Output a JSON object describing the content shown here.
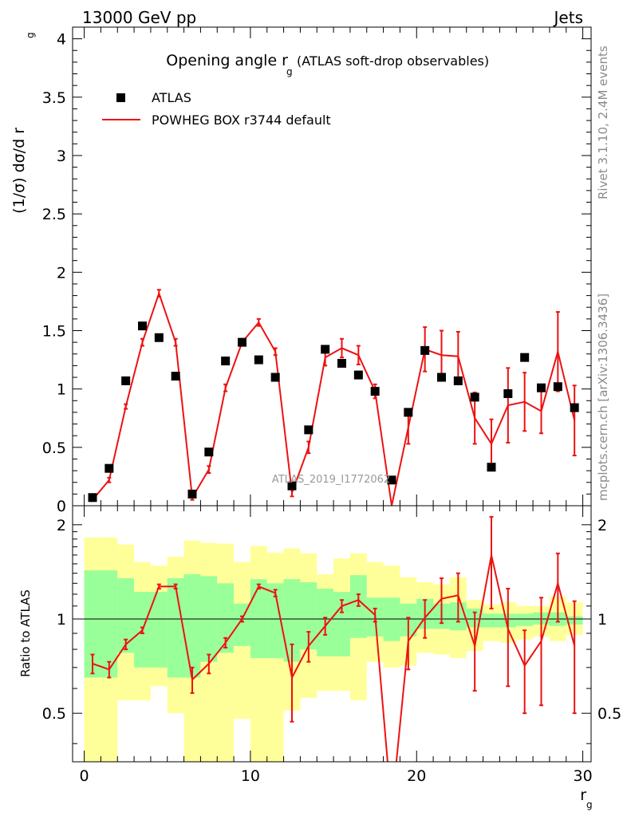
{
  "header": {
    "left_label": "13000 GeV pp",
    "right_label": "Jets"
  },
  "side_labels": {
    "rivet": "Rivet 3.1.10,  2.4M events",
    "mcplots": "mcplots.cern.ch [arXiv:1306.3436]"
  },
  "colors": {
    "mc_line": "#ee1111",
    "data_marker": "#000000",
    "band_inner": "#99ff99",
    "band_outer": "#ffff99"
  },
  "chart_data": [
    {
      "type": "scatter",
      "title": "Opening angle r",
      "title_sub": "g",
      "title_suffix": "(ATLAS soft-drop observables)",
      "ylabel": "(1/σ) dσ/d r",
      "ylabel_sub": "g",
      "watermark": "ATLAS_2019_I1772062",
      "xlim": [
        -0.7,
        30.5
      ],
      "ylim": [
        0,
        4.1
      ],
      "yticks": [
        0,
        0.5,
        1,
        1.5,
        2,
        2.5,
        3,
        3.5,
        4
      ],
      "ytick_labels": [
        "0",
        "0.5",
        "1",
        "1.5",
        "2",
        "2.5",
        "3",
        "3.5",
        "4"
      ],
      "legend": {
        "placement": "top-left",
        "data_label": "ATLAS",
        "mc_label": "POWHEG BOX r3744 default"
      },
      "x": [
        0.5,
        1.5,
        2.5,
        3.5,
        4.5,
        5.5,
        6.5,
        7.5,
        8.5,
        9.5,
        10.5,
        11.5,
        12.5,
        13.5,
        14.5,
        15.5,
        16.5,
        17.5,
        18.5,
        19.5,
        20.5,
        21.5,
        22.5,
        23.5,
        24.5,
        25.5,
        26.5,
        27.5,
        28.5,
        29.5
      ],
      "series": [
        {
          "name": "ATLAS",
          "values": [
            0.07,
            0.32,
            1.07,
            1.54,
            1.44,
            1.11,
            0.1,
            0.46,
            1.24,
            1.4,
            1.25,
            1.1,
            0.17,
            0.65,
            1.34,
            1.22,
            1.12,
            0.98,
            0.22,
            0.8,
            1.33,
            1.1,
            1.07,
            0.93,
            0.33,
            0.96,
            1.27,
            1.01,
            1.02,
            0.84
          ]
        },
        {
          "name": "POWHEG BOX r3744 default",
          "values": [
            0.05,
            0.22,
            0.85,
            1.4,
            1.82,
            1.4,
            0.07,
            0.31,
            1.01,
            1.4,
            1.57,
            1.32,
            0.11,
            0.5,
            1.27,
            1.35,
            1.29,
            0.98,
            0.0,
            0.67,
            1.34,
            1.29,
            1.28,
            0.75,
            0.53,
            0.86,
            0.89,
            0.81,
            1.32,
            0.73
          ],
          "errors": [
            0.01,
            0.02,
            0.02,
            0.03,
            0.03,
            0.03,
            0.02,
            0.03,
            0.03,
            0.03,
            0.03,
            0.03,
            0.03,
            0.05,
            0.07,
            0.08,
            0.08,
            0.06,
            0.0,
            0.14,
            0.19,
            0.21,
            0.21,
            0.22,
            0.21,
            0.32,
            0.25,
            0.19,
            0.34,
            0.3
          ]
        }
      ]
    },
    {
      "type": "line",
      "ylabel": "Ratio to ATLAS",
      "xlabel": "r",
      "xlabel_sub": "g",
      "xlim": [
        -0.7,
        30.5
      ],
      "ylim": [
        0.35,
        2.3
      ],
      "yticks": [
        0.5,
        1,
        2
      ],
      "ytick_labels": [
        "0.5",
        "1",
        "2"
      ],
      "xticks": [
        0,
        10,
        20,
        30
      ],
      "xtick_labels": [
        "0",
        "10",
        "20",
        "30"
      ],
      "x": [
        0.5,
        1.5,
        2.5,
        3.5,
        4.5,
        5.5,
        6.5,
        7.5,
        8.5,
        9.5,
        10.5,
        11.5,
        12.5,
        13.5,
        14.5,
        15.5,
        16.5,
        17.5,
        18.5,
        19.5,
        20.5,
        21.5,
        22.5,
        23.5,
        24.5,
        25.5,
        26.5,
        27.5,
        28.5,
        29.5
      ],
      "ratio": [
        0.72,
        0.69,
        0.83,
        0.92,
        1.27,
        1.27,
        0.64,
        0.72,
        0.84,
        1.0,
        1.27,
        1.21,
        0.65,
        0.82,
        0.95,
        1.1,
        1.15,
        1.03,
        0.0,
        0.85,
        1.01,
        1.16,
        1.19,
        0.82,
        1.6,
        0.93,
        0.71,
        0.85,
        1.3,
        0.82
      ],
      "ratio_errors": [
        0.05,
        0.04,
        0.03,
        0.02,
        0.02,
        0.02,
        0.06,
        0.05,
        0.03,
        0.02,
        0.02,
        0.03,
        0.18,
        0.09,
        0.06,
        0.05,
        0.05,
        0.05,
        0.0,
        0.16,
        0.14,
        0.19,
        0.21,
        0.23,
        0.52,
        0.32,
        0.21,
        0.32,
        0.32,
        0.32
      ],
      "band_inner": [
        [
          0.65,
          1.43
        ],
        [
          0.65,
          1.43
        ],
        [
          0.78,
          1.35
        ],
        [
          0.7,
          1.22
        ],
        [
          0.7,
          1.22
        ],
        [
          0.65,
          1.35
        ],
        [
          0.65,
          1.39
        ],
        [
          0.73,
          1.37
        ],
        [
          0.78,
          1.3
        ],
        [
          0.82,
          1.12
        ],
        [
          0.75,
          1.34
        ],
        [
          0.75,
          1.3
        ],
        [
          0.73,
          1.34
        ],
        [
          0.8,
          1.31
        ],
        [
          0.76,
          1.25
        ],
        [
          0.76,
          1.22
        ],
        [
          0.87,
          1.38
        ],
        [
          0.88,
          1.17
        ],
        [
          0.85,
          1.17
        ],
        [
          0.88,
          1.12
        ],
        [
          0.93,
          1.16
        ],
        [
          0.93,
          1.12
        ],
        [
          0.92,
          1.13
        ],
        [
          0.94,
          1.08
        ],
        [
          0.94,
          1.04
        ],
        [
          0.94,
          1.04
        ],
        [
          0.95,
          1.04
        ],
        [
          0.96,
          1.05
        ],
        [
          0.95,
          1.05
        ],
        [
          0.96,
          1.02
        ]
      ],
      "band_outer": [
        [
          0.35,
          1.82
        ],
        [
          0.35,
          1.82
        ],
        [
          0.55,
          1.73
        ],
        [
          0.55,
          1.52
        ],
        [
          0.61,
          1.48
        ],
        [
          0.5,
          1.58
        ],
        [
          0.35,
          1.78
        ],
        [
          0.35,
          1.75
        ],
        [
          0.35,
          1.74
        ],
        [
          0.48,
          1.52
        ],
        [
          0.35,
          1.71
        ],
        [
          0.35,
          1.63
        ],
        [
          0.51,
          1.68
        ],
        [
          0.56,
          1.62
        ],
        [
          0.59,
          1.39
        ],
        [
          0.59,
          1.56
        ],
        [
          0.55,
          1.62
        ],
        [
          0.73,
          1.52
        ],
        [
          0.7,
          1.48
        ],
        [
          0.71,
          1.36
        ],
        [
          0.78,
          1.31
        ],
        [
          0.77,
          1.29
        ],
        [
          0.75,
          1.36
        ],
        [
          0.79,
          1.15
        ],
        [
          0.85,
          1.11
        ],
        [
          0.84,
          1.13
        ],
        [
          0.86,
          1.1
        ],
        [
          0.88,
          1.1
        ],
        [
          0.85,
          1.18
        ],
        [
          0.89,
          1.13
        ]
      ]
    }
  ]
}
